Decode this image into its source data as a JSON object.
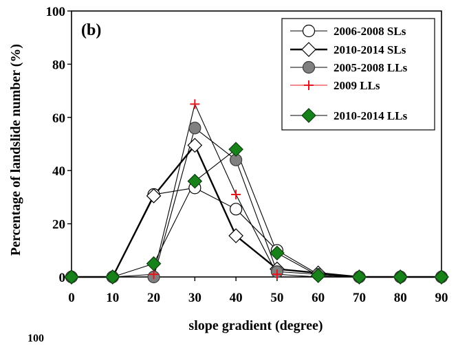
{
  "chart_data": {
    "type": "line",
    "panel_label": "(b)",
    "xlabel": "slope gradient (degree)",
    "ylabel": "Percentage of landslide number (%)",
    "x": [
      0,
      10,
      20,
      30,
      40,
      50,
      60,
      70,
      80,
      90
    ],
    "xlim": [
      0,
      90
    ],
    "ylim": [
      0,
      100
    ],
    "xticks": [
      "0",
      "10",
      "20",
      "30",
      "40",
      "50",
      "60",
      "70",
      "80",
      "90"
    ],
    "yticks": [
      "0",
      "20",
      "40",
      "60",
      "80",
      "100"
    ],
    "grid": false,
    "legend_position": "top-right",
    "bottom_cut_label": "100",
    "series": [
      {
        "name": "2006-2008 SLs",
        "marker": "circle-open",
        "color": "#000000",
        "line": "thin",
        "values": [
          0,
          0,
          31,
          33.5,
          25.5,
          10,
          1,
          0,
          0,
          0
        ]
      },
      {
        "name": "2010-2014 SLs",
        "marker": "diamond-open",
        "color": "#000000",
        "line": "thick",
        "values": [
          0,
          0,
          30.5,
          49.5,
          15.5,
          3,
          1.5,
          0,
          0,
          0
        ]
      },
      {
        "name": "2005-2008 LLs",
        "marker": "circle-gray",
        "color": "#7f7f7f",
        "line": "thin",
        "values": [
          0,
          0,
          0,
          56,
          44,
          2,
          1,
          0,
          0,
          0
        ]
      },
      {
        "name": "2009 LLs",
        "marker": "plus",
        "color": "#e8141b",
        "line": "thin",
        "values": [
          0,
          0,
          1,
          65,
          31,
          1,
          0,
          0,
          0,
          0
        ]
      },
      {
        "name": "2010-2014 LLs",
        "marker": "diamond-green",
        "color": "#17821a",
        "line": "thin",
        "values": [
          0,
          0,
          5,
          36,
          48,
          9,
          0.5,
          0,
          0,
          0
        ]
      }
    ]
  }
}
